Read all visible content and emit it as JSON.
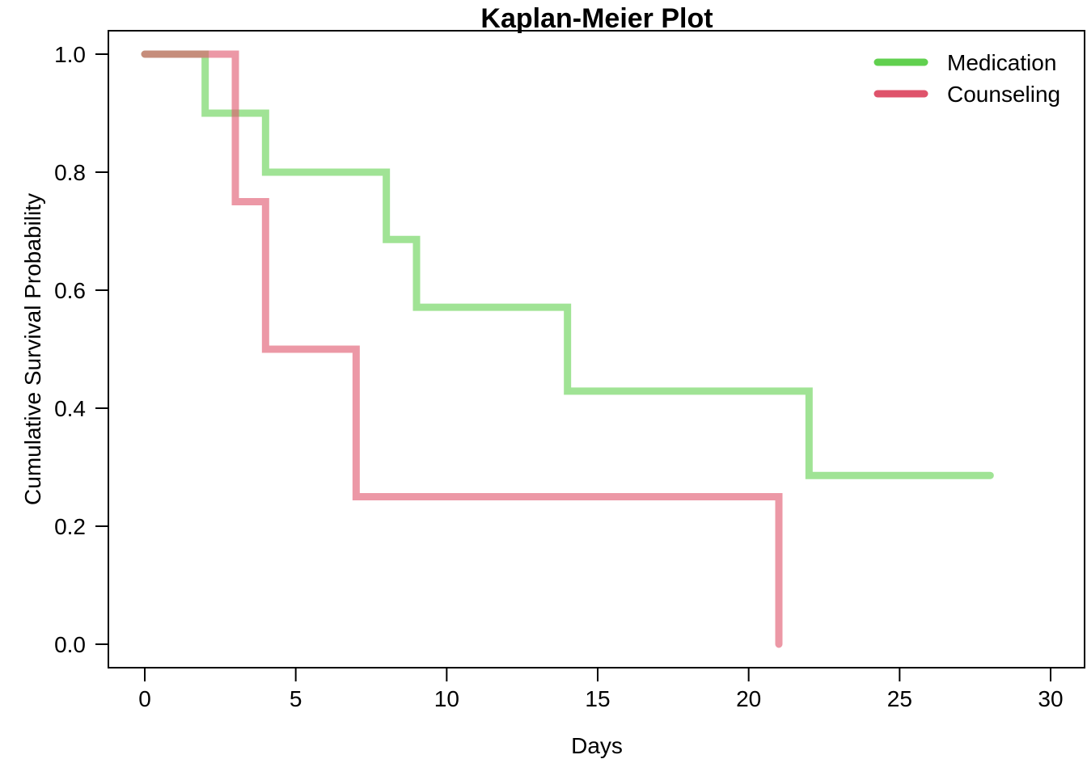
{
  "chart_data": {
    "type": "line",
    "step": true,
    "title": "Kaplan-Meier Plot",
    "xlabel": "Days",
    "ylabel": "Cumulative Survival Probability",
    "xlim": [
      0,
      30
    ],
    "ylim": [
      0,
      1
    ],
    "xticks": [
      "0",
      "5",
      "10",
      "15",
      "20",
      "25",
      "30"
    ],
    "yticks": [
      "0.0",
      "0.2",
      "0.4",
      "0.6",
      "0.8",
      "1.0"
    ],
    "grid": false,
    "legend_position": "top-right",
    "series": [
      {
        "name": "Medication",
        "color": "#61D04F",
        "x": [
          0,
          2,
          4,
          8,
          9,
          14,
          22,
          28
        ],
        "y": [
          1.0,
          0.9,
          0.8,
          0.686,
          0.571,
          0.429,
          0.286,
          0.286
        ]
      },
      {
        "name": "Counseling",
        "color": "#DF536B",
        "x": [
          0,
          3,
          4,
          7,
          21,
          21
        ],
        "y": [
          1.0,
          0.75,
          0.5,
          0.25,
          0.25,
          0.0
        ]
      }
    ]
  }
}
